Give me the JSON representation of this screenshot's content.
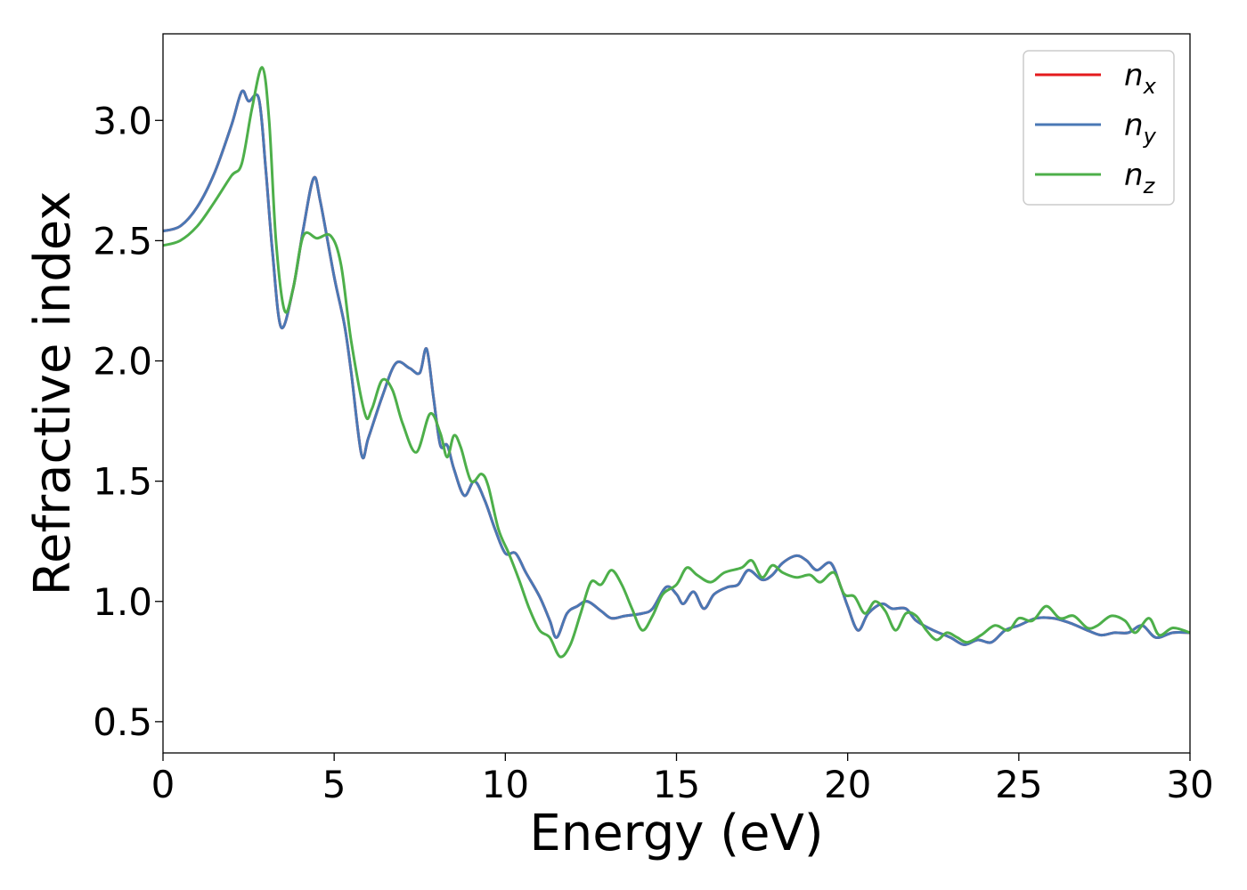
{
  "chart_data": {
    "type": "line",
    "xlabel": "Energy (eV)",
    "ylabel": "Refractive index",
    "xlim": [
      0,
      30
    ],
    "ylim": [
      0.37,
      3.36
    ],
    "xticks": [
      0,
      5,
      10,
      15,
      20,
      25,
      30
    ],
    "xtick_labels": [
      "0",
      "5",
      "10",
      "15",
      "20",
      "25",
      "30"
    ],
    "yticks": [
      0.5,
      1.0,
      1.5,
      2.0,
      2.5,
      3.0
    ],
    "ytick_labels": [
      "0.5",
      "1.0",
      "1.5",
      "2.0",
      "2.5",
      "3.0"
    ],
    "grid": false,
    "legend_position": "top-right",
    "series": [
      {
        "name": "n_x",
        "legend_base": "n",
        "legend_sub": "x",
        "color": "#e41a1c",
        "x": [
          0,
          0.5,
          1.0,
          1.5,
          2.0,
          2.3,
          2.5,
          2.8,
          3.0,
          3.2,
          3.45,
          3.8,
          4.1,
          4.4,
          4.6,
          5.0,
          5.3,
          5.5,
          5.8,
          6.0,
          6.4,
          6.8,
          7.2,
          7.5,
          7.7,
          7.9,
          8.1,
          8.3,
          8.5,
          8.8,
          9.1,
          9.4,
          9.7,
          10.0,
          10.3,
          10.6,
          11.0,
          11.3,
          11.5,
          11.8,
          12.1,
          12.4,
          12.8,
          13.1,
          13.5,
          14.0,
          14.3,
          14.7,
          15.0,
          15.2,
          15.5,
          15.8,
          16.1,
          16.5,
          16.8,
          17.1,
          17.5,
          17.8,
          18.1,
          18.5,
          18.8,
          19.1,
          19.5,
          19.8,
          20.0,
          20.3,
          20.6,
          21.0,
          21.3,
          21.7,
          22.0,
          22.5,
          23.0,
          23.4,
          23.8,
          24.2,
          24.6,
          25.0,
          25.5,
          26.0,
          26.5,
          27.0,
          27.4,
          27.8,
          28.2,
          28.6,
          29.0,
          29.5,
          30.0
        ],
        "y": [
          2.54,
          2.56,
          2.64,
          2.78,
          2.98,
          3.12,
          3.08,
          3.09,
          2.8,
          2.45,
          2.14,
          2.3,
          2.55,
          2.76,
          2.66,
          2.35,
          2.15,
          1.95,
          1.61,
          1.68,
          1.85,
          1.99,
          1.97,
          1.95,
          2.05,
          1.85,
          1.65,
          1.65,
          1.55,
          1.44,
          1.5,
          1.42,
          1.3,
          1.2,
          1.2,
          1.12,
          1.02,
          0.92,
          0.85,
          0.95,
          0.98,
          1.0,
          0.96,
          0.93,
          0.94,
          0.95,
          0.97,
          1.06,
          1.03,
          0.99,
          1.04,
          0.97,
          1.03,
          1.06,
          1.07,
          1.13,
          1.09,
          1.11,
          1.16,
          1.19,
          1.17,
          1.13,
          1.16,
          1.06,
          0.98,
          0.88,
          0.95,
          0.99,
          0.97,
          0.97,
          0.92,
          0.88,
          0.85,
          0.82,
          0.84,
          0.83,
          0.88,
          0.9,
          0.93,
          0.93,
          0.91,
          0.88,
          0.86,
          0.87,
          0.87,
          0.9,
          0.85,
          0.87,
          0.87
        ]
      },
      {
        "name": "n_y",
        "legend_base": "n",
        "legend_sub": "y",
        "color": "#4a78b5",
        "x": [
          0,
          0.5,
          1.0,
          1.5,
          2.0,
          2.3,
          2.5,
          2.8,
          3.0,
          3.2,
          3.45,
          3.8,
          4.1,
          4.4,
          4.6,
          5.0,
          5.3,
          5.5,
          5.8,
          6.0,
          6.4,
          6.8,
          7.2,
          7.5,
          7.7,
          7.9,
          8.1,
          8.3,
          8.5,
          8.8,
          9.1,
          9.4,
          9.7,
          10.0,
          10.3,
          10.6,
          11.0,
          11.3,
          11.5,
          11.8,
          12.1,
          12.4,
          12.8,
          13.1,
          13.5,
          14.0,
          14.3,
          14.7,
          15.0,
          15.2,
          15.5,
          15.8,
          16.1,
          16.5,
          16.8,
          17.1,
          17.5,
          17.8,
          18.1,
          18.5,
          18.8,
          19.1,
          19.5,
          19.8,
          20.0,
          20.3,
          20.6,
          21.0,
          21.3,
          21.7,
          22.0,
          22.5,
          23.0,
          23.4,
          23.8,
          24.2,
          24.6,
          25.0,
          25.5,
          26.0,
          26.5,
          27.0,
          27.4,
          27.8,
          28.2,
          28.6,
          29.0,
          29.5,
          30.0
        ],
        "y": [
          2.54,
          2.56,
          2.64,
          2.78,
          2.98,
          3.12,
          3.08,
          3.09,
          2.8,
          2.45,
          2.14,
          2.3,
          2.55,
          2.76,
          2.66,
          2.35,
          2.15,
          1.95,
          1.61,
          1.68,
          1.85,
          1.99,
          1.97,
          1.95,
          2.05,
          1.85,
          1.65,
          1.65,
          1.55,
          1.44,
          1.5,
          1.42,
          1.3,
          1.2,
          1.2,
          1.12,
          1.02,
          0.92,
          0.85,
          0.95,
          0.98,
          1.0,
          0.96,
          0.93,
          0.94,
          0.95,
          0.97,
          1.06,
          1.03,
          0.99,
          1.04,
          0.97,
          1.03,
          1.06,
          1.07,
          1.13,
          1.09,
          1.11,
          1.16,
          1.19,
          1.17,
          1.13,
          1.16,
          1.06,
          0.98,
          0.88,
          0.95,
          0.99,
          0.97,
          0.97,
          0.92,
          0.88,
          0.85,
          0.82,
          0.84,
          0.83,
          0.88,
          0.9,
          0.93,
          0.93,
          0.91,
          0.88,
          0.86,
          0.87,
          0.87,
          0.9,
          0.85,
          0.87,
          0.87
        ]
      },
      {
        "name": "n_z",
        "legend_base": "n",
        "legend_sub": "z",
        "color": "#4daf4a",
        "x": [
          0,
          0.5,
          1.0,
          1.5,
          2.0,
          2.3,
          2.6,
          2.9,
          3.1,
          3.3,
          3.55,
          3.8,
          4.1,
          4.5,
          4.9,
          5.2,
          5.5,
          5.9,
          6.1,
          6.4,
          6.7,
          7.0,
          7.4,
          7.8,
          8.1,
          8.3,
          8.5,
          8.7,
          9.0,
          9.3,
          9.5,
          9.8,
          10.1,
          10.4,
          10.7,
          11.0,
          11.3,
          11.6,
          11.9,
          12.2,
          12.5,
          12.8,
          13.1,
          13.4,
          13.7,
          14.0,
          14.3,
          14.6,
          15.0,
          15.3,
          15.6,
          16.0,
          16.4,
          16.9,
          17.2,
          17.5,
          17.8,
          18.1,
          18.5,
          18.9,
          19.2,
          19.6,
          19.9,
          20.2,
          20.5,
          20.8,
          21.1,
          21.4,
          21.7,
          22.0,
          22.3,
          22.6,
          22.9,
          23.2,
          23.5,
          23.9,
          24.3,
          24.7,
          25.0,
          25.4,
          25.8,
          26.2,
          26.6,
          27.0,
          27.3,
          27.7,
          28.1,
          28.4,
          28.8,
          29.1,
          29.5,
          30.0
        ],
        "y": [
          2.48,
          2.5,
          2.56,
          2.66,
          2.77,
          2.82,
          3.05,
          3.22,
          3.0,
          2.5,
          2.21,
          2.3,
          2.52,
          2.51,
          2.52,
          2.4,
          2.08,
          1.78,
          1.8,
          1.92,
          1.88,
          1.74,
          1.62,
          1.78,
          1.7,
          1.6,
          1.69,
          1.64,
          1.5,
          1.53,
          1.48,
          1.3,
          1.2,
          1.09,
          0.97,
          0.88,
          0.85,
          0.77,
          0.82,
          0.95,
          1.08,
          1.07,
          1.13,
          1.07,
          0.97,
          0.88,
          0.94,
          1.03,
          1.07,
          1.14,
          1.11,
          1.08,
          1.12,
          1.14,
          1.17,
          1.1,
          1.15,
          1.12,
          1.1,
          1.11,
          1.08,
          1.12,
          1.03,
          1.02,
          0.95,
          1.0,
          0.96,
          0.88,
          0.95,
          0.94,
          0.88,
          0.84,
          0.87,
          0.85,
          0.83,
          0.86,
          0.9,
          0.88,
          0.93,
          0.92,
          0.98,
          0.93,
          0.94,
          0.89,
          0.9,
          0.94,
          0.92,
          0.87,
          0.93,
          0.86,
          0.89,
          0.87
        ]
      }
    ]
  }
}
